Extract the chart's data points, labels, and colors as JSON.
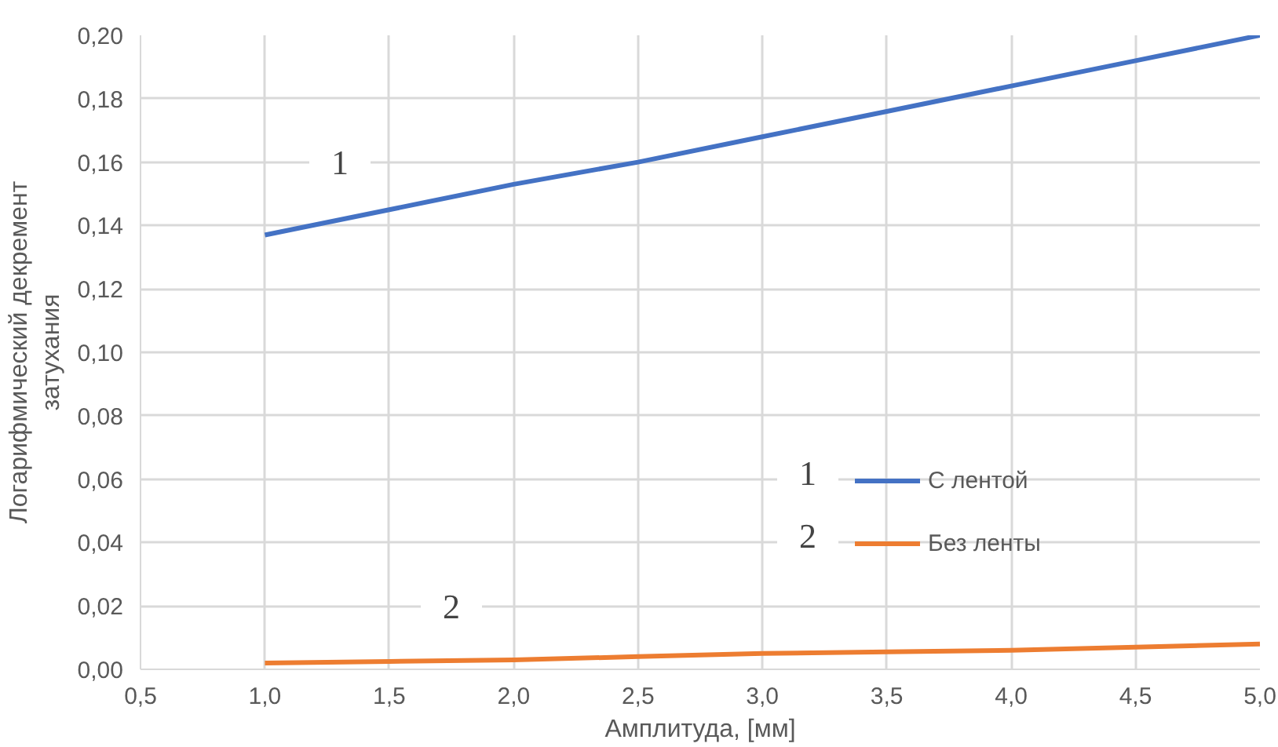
{
  "chart_data": {
    "type": "line",
    "xlabel": "Амплитуда, [мм]",
    "ylabel": "Логарифмический декремент затухания",
    "x": [
      1.0,
      1.5,
      2.0,
      2.5,
      3.0,
      3.5,
      4.0,
      4.5,
      5.0
    ],
    "series": [
      {
        "name": "С лентой",
        "color": "#4472c4",
        "values": [
          0.137,
          0.145,
          0.153,
          0.16,
          0.168,
          0.176,
          0.184,
          0.192,
          0.2
        ]
      },
      {
        "name": "Без ленты",
        "color": "#ed7d31",
        "values": [
          0.002,
          0.0025,
          0.003,
          0.004,
          0.005,
          0.0055,
          0.006,
          0.007,
          0.008
        ]
      }
    ],
    "xlim": [
      0.5,
      5.0
    ],
    "ylim": [
      0,
      0.2
    ],
    "xticks": [
      {
        "value": 0.5,
        "label": "0,5"
      },
      {
        "value": 1.0,
        "label": "1,0"
      },
      {
        "value": 1.5,
        "label": "1,5"
      },
      {
        "value": 2.0,
        "label": "2,0"
      },
      {
        "value": 2.5,
        "label": "2,5"
      },
      {
        "value": 3.0,
        "label": "3,0"
      },
      {
        "value": 3.5,
        "label": "3,5"
      },
      {
        "value": 4.0,
        "label": "4,0"
      },
      {
        "value": 4.5,
        "label": "4,5"
      },
      {
        "value": 5.0,
        "label": "5,0"
      }
    ],
    "yticks": [
      {
        "value": 0,
        "label": "0,00"
      },
      {
        "value": 0.02,
        "label": "0,02"
      },
      {
        "value": 0.04,
        "label": "0,04"
      },
      {
        "value": 0.06,
        "label": "0,06"
      },
      {
        "value": 0.08,
        "label": "0,08"
      },
      {
        "value": 0.1,
        "label": "0,10"
      },
      {
        "value": 0.12,
        "label": "0,12"
      },
      {
        "value": 0.14,
        "label": "0,14"
      },
      {
        "value": 0.16,
        "label": "0,16"
      },
      {
        "value": 0.18,
        "label": "0,18"
      },
      {
        "value": 0.2,
        "label": "0,20"
      }
    ],
    "annotations": [
      "1",
      "2",
      "1",
      "2"
    ],
    "grid": true,
    "legend": "right",
    "marker": "none",
    "line_style": "solid"
  }
}
